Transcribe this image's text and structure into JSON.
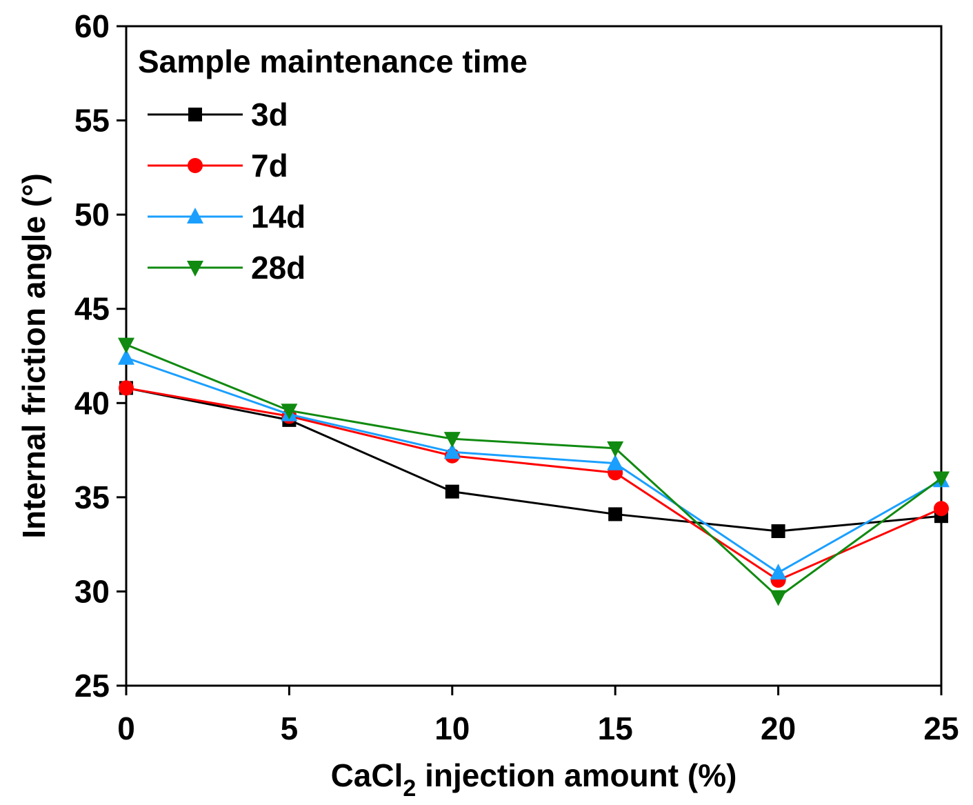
{
  "chart_data": {
    "type": "line",
    "xlabel_main": "CaCl",
    "xlabel_sub": "2",
    "xlabel_rest": " injection amount (%)",
    "ylabel": "Internal friction angle (°)",
    "xlim": [
      0,
      25
    ],
    "ylim": [
      25,
      60
    ],
    "x_ticks": [
      "0",
      "5",
      "10",
      "15",
      "20",
      "25"
    ],
    "y_ticks": [
      "25",
      "30",
      "35",
      "40",
      "45",
      "50",
      "55",
      "60"
    ],
    "grid": false,
    "legend_title": "Sample maintenance time",
    "legend_position": "top-left",
    "x": [
      0,
      5,
      10,
      15,
      20,
      25
    ],
    "series": [
      {
        "name": "3d",
        "color": "#000000",
        "marker": "square",
        "values": [
          40.8,
          39.1,
          35.3,
          34.1,
          33.2,
          34.0
        ]
      },
      {
        "name": "7d",
        "color": "#ff0000",
        "marker": "circle",
        "values": [
          40.8,
          39.3,
          37.2,
          36.3,
          30.6,
          34.4
        ]
      },
      {
        "name": "14d",
        "color": "#1a9fff",
        "marker": "triangle-up",
        "values": [
          42.4,
          39.4,
          37.4,
          36.8,
          31.0,
          35.9
        ]
      },
      {
        "name": "28d",
        "color": "#108a10",
        "marker": "triangle-down",
        "values": [
          43.1,
          39.6,
          38.1,
          37.6,
          29.7,
          36.0
        ]
      }
    ]
  }
}
